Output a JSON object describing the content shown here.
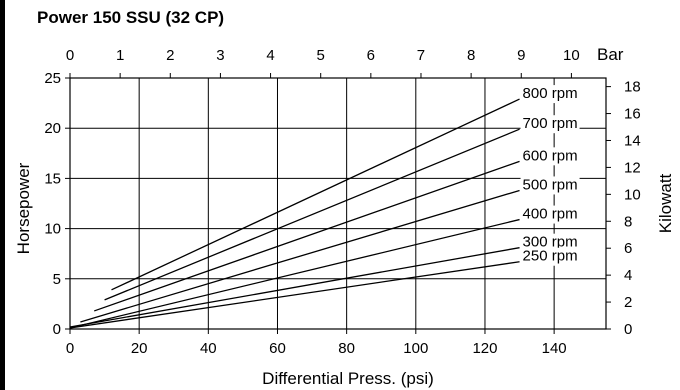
{
  "chart_data": {
    "type": "line",
    "title": "Power 150 SSU (32 CP)",
    "xlabel": "Differential Press. (psi)",
    "ylabel": "Horsepower",
    "y2label": "Kilowatt",
    "x2unit": "Bar",
    "xlim": [
      0,
      155
    ],
    "ylim": [
      0,
      25
    ],
    "y2lim": [
      0,
      18.64
    ],
    "x2lim": [
      0,
      10.69
    ],
    "x_ticks": [
      0,
      20,
      40,
      60,
      80,
      100,
      120,
      140
    ],
    "y_ticks": [
      0,
      5,
      10,
      15,
      20,
      25
    ],
    "y2_ticks": [
      0,
      2,
      4,
      6,
      8,
      10,
      12,
      14,
      16,
      18
    ],
    "x2_ticks": [
      0,
      1,
      2,
      3,
      4,
      5,
      6,
      7,
      8,
      9,
      10
    ],
    "grid": true,
    "series": [
      {
        "name": "800 rpm",
        "values": [
          [
            12,
            3.9
          ],
          [
            130,
            22.9
          ]
        ]
      },
      {
        "name": "700 rpm",
        "values": [
          [
            10,
            2.9
          ],
          [
            130,
            19.9
          ]
        ]
      },
      {
        "name": "600 rpm",
        "values": [
          [
            7,
            1.8
          ],
          [
            130,
            16.7
          ]
        ]
      },
      {
        "name": "500 rpm",
        "values": [
          [
            3,
            0.7
          ],
          [
            130,
            13.8
          ]
        ]
      },
      {
        "name": "400 rpm",
        "values": [
          [
            0,
            0.1
          ],
          [
            130,
            10.9
          ]
        ]
      },
      {
        "name": "300 rpm",
        "values": [
          [
            0,
            0.2
          ],
          [
            130,
            8.1
          ]
        ]
      },
      {
        "name": "250 rpm",
        "values": [
          [
            0,
            0.1
          ],
          [
            130,
            6.7
          ]
        ]
      }
    ]
  }
}
